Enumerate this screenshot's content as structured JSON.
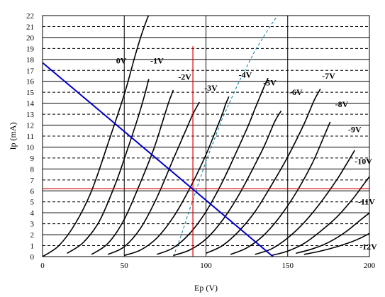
{
  "chart_data": {
    "type": "line",
    "xlabel": "Ep (V)",
    "ylabel": "Ip (mA)",
    "xlim": [
      0,
      200
    ],
    "ylim": [
      0,
      22
    ],
    "x_ticks": [
      0,
      50,
      100,
      150,
      200
    ],
    "y_ticks": [
      0,
      1,
      2,
      3,
      4,
      5,
      6,
      7,
      8,
      9,
      10,
      11,
      12,
      13,
      14,
      15,
      16,
      17,
      18,
      19,
      20,
      21,
      22
    ],
    "x_minor_step": 5,
    "grid": true,
    "series": [
      {
        "name": "0V",
        "x": [
          0,
          10,
          20,
          30,
          40,
          50,
          56,
          60,
          64,
          66
        ],
        "y": [
          0,
          1.0,
          3.0,
          6.0,
          10.3,
          14.8,
          18.0,
          20.0,
          21.7,
          22.3
        ]
      },
      {
        "name": "-1V",
        "x": [
          15,
          25,
          35,
          45,
          52,
          58,
          62,
          65
        ],
        "y": [
          0.3,
          1.3,
          3.3,
          6.8,
          9.8,
          12.5,
          14.5,
          16.2
        ]
      },
      {
        "name": "-2V",
        "x": [
          30,
          40,
          50,
          60,
          68,
          73,
          77,
          80
        ],
        "y": [
          0.2,
          1.2,
          3.4,
          6.8,
          9.8,
          12.1,
          14.0,
          15.2
        ]
      },
      {
        "name": "-3V",
        "x": [
          40,
          50,
          60,
          70,
          80,
          87,
          92,
          96
        ],
        "y": [
          0.2,
          0.9,
          2.6,
          5.4,
          8.9,
          11.3,
          13.0,
          14.1
        ]
      },
      {
        "name": "-4V",
        "x": [
          50,
          60,
          70,
          80,
          90,
          100,
          106,
          110,
          112,
          114
        ],
        "y": [
          0.1,
          0.6,
          1.7,
          3.6,
          6.2,
          9.3,
          11.5,
          13.0,
          13.9,
          14.6
        ]
      },
      {
        "name": "-5V",
        "x": [
          70,
          80,
          90,
          100,
          110,
          120,
          126,
          130,
          135,
          138
        ],
        "y": [
          0.2,
          0.8,
          2.1,
          4.1,
          6.8,
          10.0,
          12.0,
          13.5,
          15.3,
          16.3
        ]
      },
      {
        "name": "-6V",
        "x": [
          80,
          90,
          100,
          110,
          120,
          130,
          136,
          142,
          146
        ],
        "y": [
          0.1,
          0.6,
          1.6,
          3.3,
          5.6,
          8.4,
          10.2,
          12.3,
          13.3
        ]
      },
      {
        "name": "-7V",
        "x": [
          100,
          110,
          120,
          130,
          140,
          150,
          160,
          166,
          170
        ],
        "y": [
          0.3,
          1.0,
          2.3,
          4.1,
          6.5,
          9.1,
          12.1,
          14.2,
          15.3
        ]
      },
      {
        "name": "-8V",
        "x": [
          115,
          125,
          135,
          145,
          155,
          165,
          172,
          176
        ],
        "y": [
          0.2,
          0.8,
          1.9,
          3.6,
          5.8,
          8.5,
          10.9,
          12.3
        ]
      },
      {
        "name": "-9V",
        "x": [
          130,
          140,
          150,
          160,
          170,
          180,
          185,
          191
        ],
        "y": [
          0.2,
          0.7,
          1.7,
          3.1,
          4.9,
          7.0,
          8.2,
          9.7
        ]
      },
      {
        "name": "-10V",
        "x": [
          140,
          150,
          160,
          170,
          180,
          190,
          196,
          201
        ],
        "y": [
          0.1,
          0.5,
          1.2,
          2.3,
          3.6,
          5.3,
          6.5,
          7.5
        ]
      },
      {
        "name": "-11V",
        "x": [
          155,
          165,
          175,
          185,
          195,
          201
        ],
        "y": [
          0.3,
          0.7,
          1.3,
          2.2,
          3.4,
          4.1
        ]
      },
      {
        "name": "-12V",
        "x": [
          160,
          170,
          180,
          190,
          196,
          201
        ],
        "y": [
          0.2,
          0.5,
          0.9,
          1.4,
          1.8,
          2.2
        ]
      }
    ],
    "curve_labels": [
      {
        "text": "0V",
        "x": 45,
        "y": 17.9
      },
      {
        "text": "-1V",
        "x": 66,
        "y": 17.9
      },
      {
        "text": "-2V",
        "x": 83,
        "y": 16.4
      },
      {
        "text": "-3V",
        "x": 99,
        "y": 15.4
      },
      {
        "text": "-4V",
        "x": 120,
        "y": 16.6
      },
      {
        "text": "-5V",
        "x": 135,
        "y": 15.9
      },
      {
        "text": "-6V",
        "x": 151,
        "y": 15.0
      },
      {
        "text": "-7V",
        "x": 171,
        "y": 16.5
      },
      {
        "text": "-8V",
        "x": 179,
        "y": 13.9
      },
      {
        "text": "-9V",
        "x": 187,
        "y": 11.6
      },
      {
        "text": "-10V",
        "x": 191,
        "y": 8.7
      },
      {
        "text": "-11V",
        "x": 193,
        "y": 5.0
      },
      {
        "text": "-12V",
        "x": 194,
        "y": 0.9
      }
    ],
    "load_line": {
      "x": [
        0,
        141
      ],
      "y": [
        17.7,
        0
      ],
      "color": "#0000cc"
    },
    "operating_point": {
      "x": 92,
      "y": 6.2,
      "color": "#dd0000"
    },
    "power_curve": {
      "x": [
        80,
        85,
        90,
        95,
        100,
        110,
        120,
        130,
        140,
        150
      ],
      "y": [
        0,
        2.0,
        4.3,
        6.5,
        8.7,
        12.6,
        15.9,
        18.8,
        21.2,
        23.3
      ],
      "color": "#007fa0"
    }
  }
}
